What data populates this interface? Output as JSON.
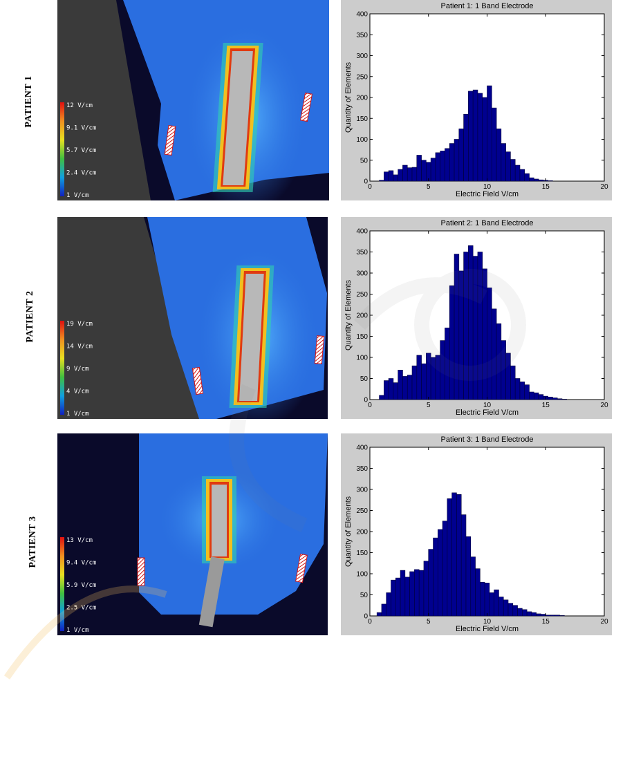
{
  "rows": [
    {
      "label": "PATIENT  1",
      "colorbar": [
        "12 V/cm",
        "9.1 V/cm",
        "5.7 V/cm",
        "2.4 V/cm",
        "1 V/cm"
      ],
      "chart_data": {
        "type": "bar",
        "title": "Patient 1: 1 Band Electrode",
        "xlabel": "Electric Field V/cm",
        "ylabel": "Quantity of Elements",
        "xlim": [
          0,
          20
        ],
        "ylim": [
          0,
          400
        ],
        "xticks": [
          0,
          5,
          10,
          15,
          20
        ],
        "yticks": [
          0,
          50,
          100,
          150,
          200,
          250,
          300,
          350,
          400
        ],
        "bin_start": 0.8,
        "bin_width": 0.4,
        "values": [
          2,
          22,
          25,
          15,
          28,
          38,
          32,
          33,
          62,
          50,
          45,
          55,
          68,
          72,
          78,
          90,
          100,
          125,
          160,
          215,
          218,
          210,
          200,
          228,
          175,
          125,
          90,
          70,
          52,
          38,
          28,
          18,
          8,
          5,
          3,
          2,
          1,
          0,
          0,
          0,
          0,
          0,
          0,
          0
        ]
      }
    },
    {
      "label": "PATIENT  2",
      "colorbar": [
        "19 V/cm",
        "14 V/cm",
        "9 V/cm",
        "4 V/cm",
        "1 V/cm"
      ],
      "chart_data": {
        "type": "bar",
        "title": "Patient 2: 1 Band Electrode",
        "xlabel": "Electric Field V/cm",
        "ylabel": "Quantity of Elements",
        "xlim": [
          0,
          20
        ],
        "ylim": [
          0,
          400
        ],
        "xticks": [
          0,
          5,
          10,
          15,
          20
        ],
        "yticks": [
          0,
          50,
          100,
          150,
          200,
          250,
          300,
          350,
          400
        ],
        "bin_start": 0.8,
        "bin_width": 0.4,
        "values": [
          10,
          45,
          50,
          40,
          70,
          55,
          58,
          80,
          105,
          85,
          110,
          100,
          105,
          140,
          170,
          270,
          345,
          305,
          350,
          365,
          340,
          350,
          310,
          265,
          215,
          180,
          140,
          110,
          80,
          50,
          42,
          35,
          18,
          16,
          12,
          8,
          6,
          4,
          2,
          1,
          0,
          0,
          0,
          0
        ]
      }
    },
    {
      "label": "PATIENT 3",
      "colorbar": [
        "13 V/cm",
        "9.4 V/cm",
        "5.9 V/cm",
        "2.5 V/cm",
        "1 V/cm"
      ],
      "chart_data": {
        "type": "bar",
        "title": "Patient 3: 1 Band Electrode",
        "xlabel": "Electric Field V/cm",
        "ylabel": "Quantity of Elements",
        "xlim": [
          0,
          20
        ],
        "ylim": [
          0,
          400
        ],
        "xticks": [
          0,
          5,
          10,
          15,
          20
        ],
        "yticks": [
          0,
          50,
          100,
          150,
          200,
          250,
          300,
          350,
          400
        ],
        "bin_start": 0.6,
        "bin_width": 0.4,
        "values": [
          8,
          28,
          55,
          85,
          90,
          108,
          92,
          105,
          110,
          108,
          130,
          158,
          185,
          205,
          225,
          278,
          292,
          288,
          240,
          188,
          140,
          112,
          80,
          78,
          55,
          62,
          45,
          38,
          30,
          25,
          18,
          15,
          10,
          8,
          5,
          4,
          2,
          2,
          2,
          1,
          0,
          0,
          0,
          0,
          0
        ]
      }
    }
  ],
  "colors": {
    "bar_fill": "#00008f",
    "bar_stroke": "#00003a",
    "figure_bg": "#cccccc",
    "axes_bg": "#ffffff",
    "sim_bg": "#0a0a2a"
  }
}
